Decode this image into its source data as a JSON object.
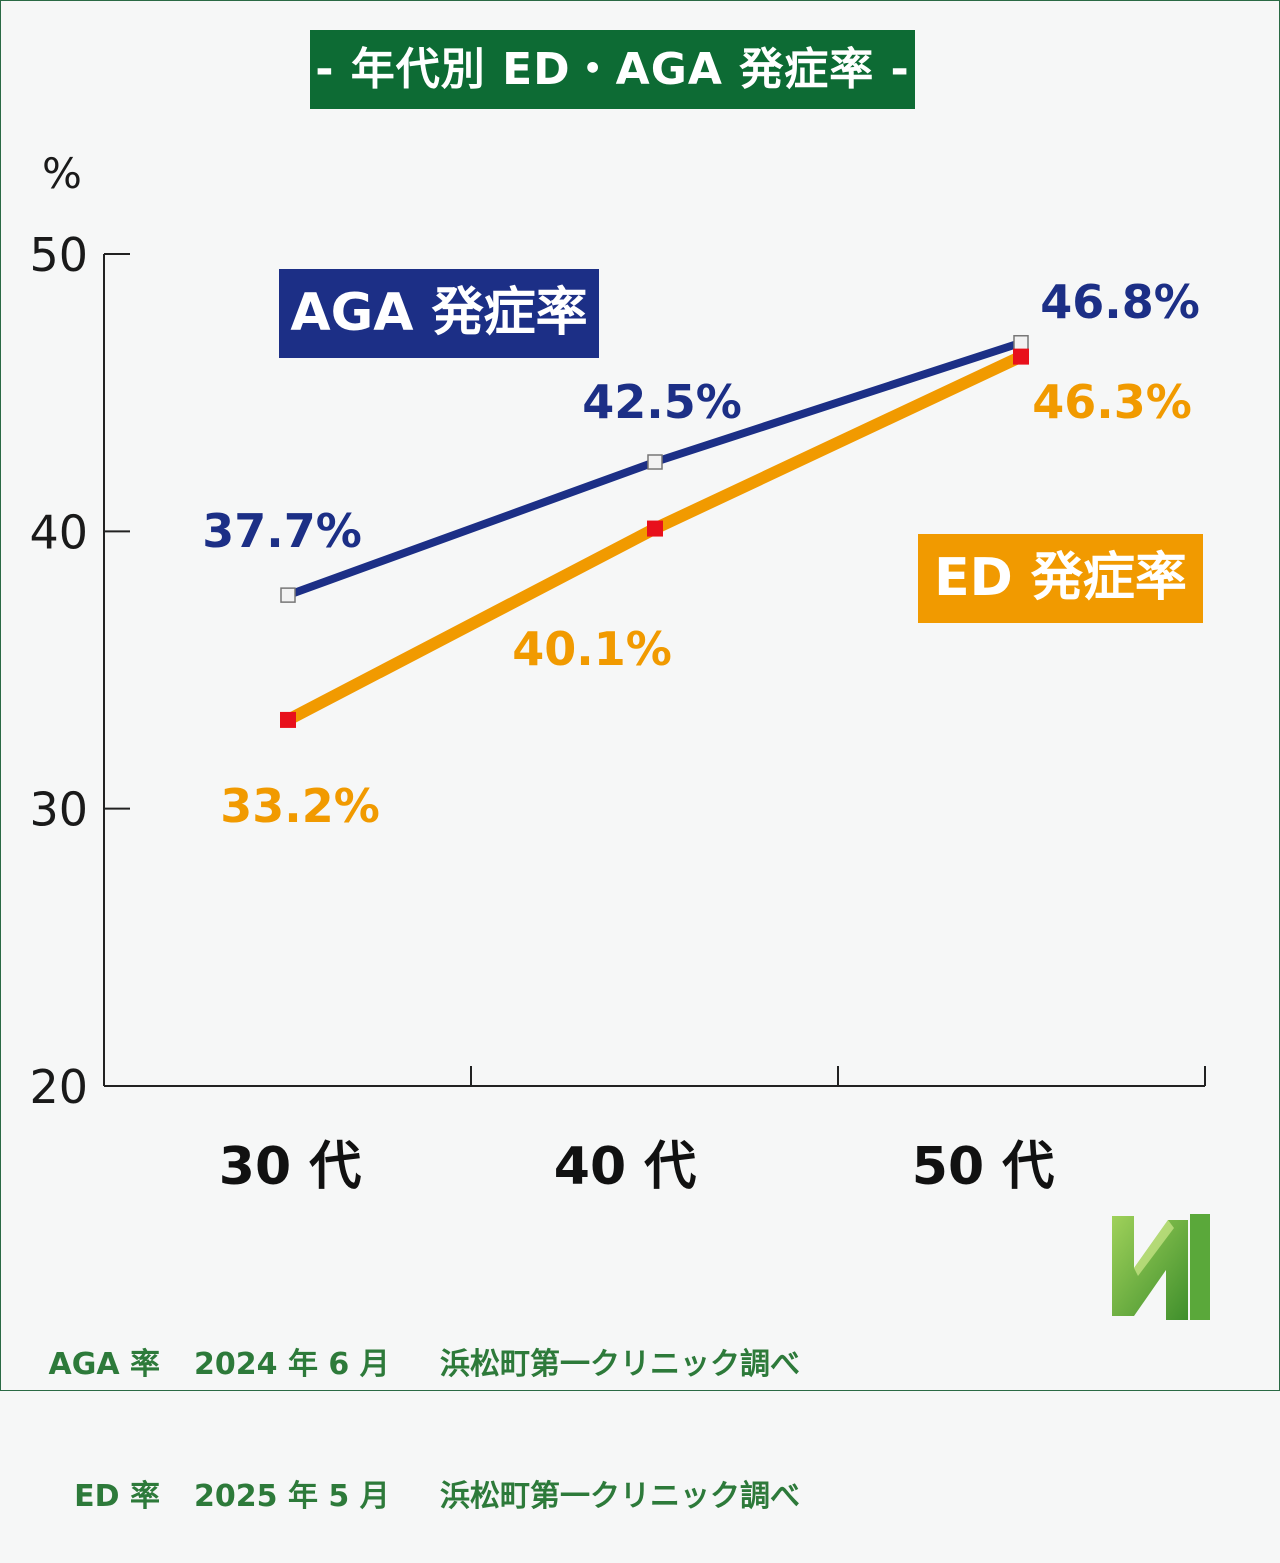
{
  "title": "- 年代別 ED・AGA 発症率 -",
  "legend": {
    "aga_label": "AGA 発症率",
    "ed_label": "ED 発症率"
  },
  "source": [
    {
      "label": "AGA 率",
      "date": "2024 年 6 月",
      "org": "浜松町第一クリニック調べ"
    },
    {
      "label": "ED 率",
      "date": "2025 年 5 月",
      "org": "浜松町第一クリニック調べ"
    }
  ],
  "colors": {
    "aga": "#1c2f86",
    "ed": "#f19a00",
    "ed_marker": "#e8101b",
    "title_bg": "#0d6b34",
    "source_text": "#2d7a3a"
  },
  "chart_data": {
    "type": "line",
    "categories": [
      "30 代",
      "40 代",
      "50 代"
    ],
    "ylabel": "%",
    "ylim": [
      20,
      50
    ],
    "yticks": [
      "50",
      "40",
      "30",
      "20"
    ],
    "grid": false,
    "series": [
      {
        "name": "AGA 発症率",
        "values": [
          37.7,
          42.5,
          46.8
        ],
        "labels": [
          "37.7%",
          "42.5%",
          "46.8%"
        ]
      },
      {
        "name": "ED 発症率",
        "values": [
          33.2,
          40.1,
          46.3
        ],
        "labels": [
          "33.2%",
          "40.1%",
          "46.3%"
        ]
      }
    ]
  }
}
